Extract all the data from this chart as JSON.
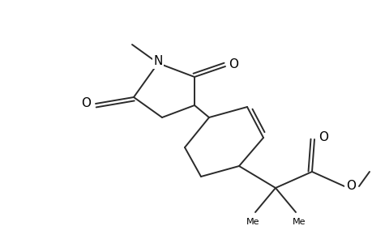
{
  "bg_color": "#ffffff",
  "line_color": "#2a2a2a",
  "line_width": 1.4,
  "text_color": "#000000",
  "fig_width": 4.6,
  "fig_height": 3.0,
  "dpi": 100,
  "xlim": [
    0,
    460
  ],
  "ylim": [
    0,
    300
  ]
}
